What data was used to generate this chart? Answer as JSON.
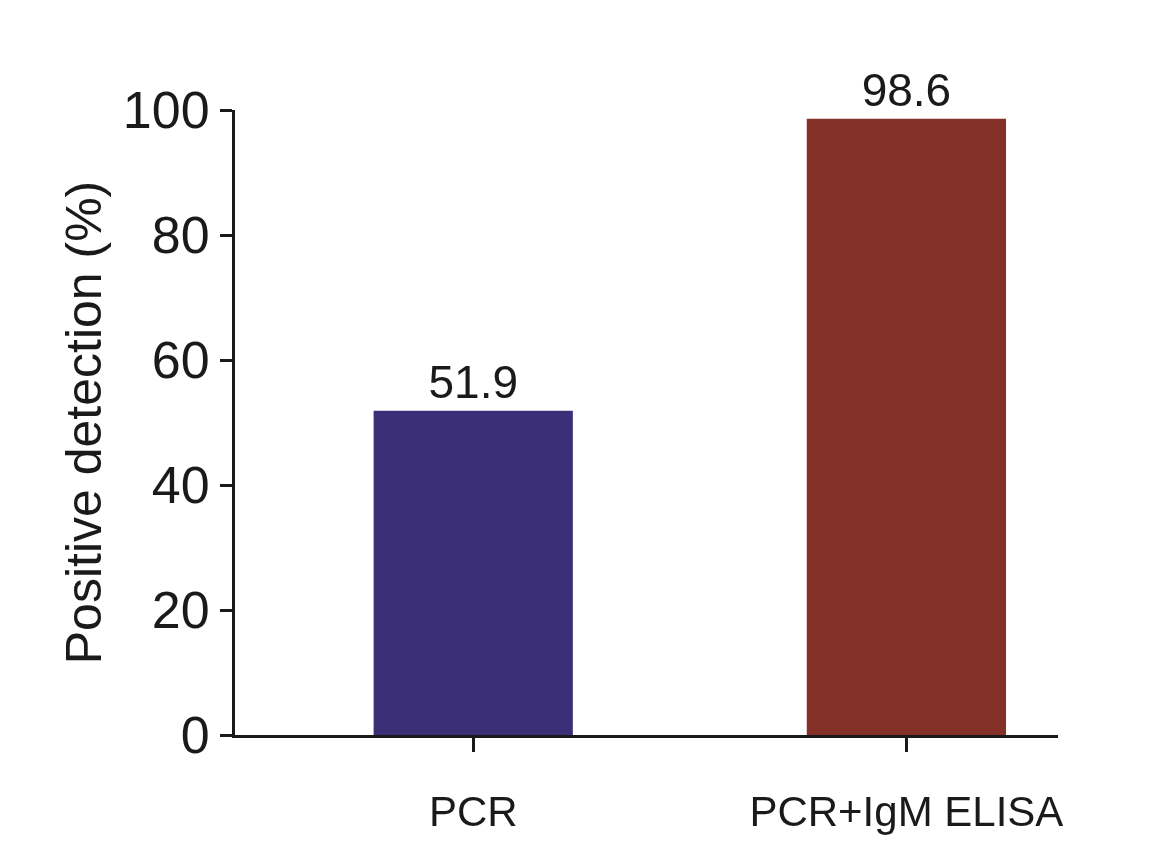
{
  "chart_data": {
    "type": "bar",
    "ylabel": "Positive detection (%)",
    "categories": [
      "PCR",
      "PCR+IgM ELISA"
    ],
    "values": [
      51.9,
      98.6
    ],
    "colors": [
      "#3b3077",
      "#86302a"
    ],
    "ylim": [
      0,
      100
    ],
    "yticks": [
      0,
      20,
      40,
      60,
      80,
      100
    ],
    "data_labels": true
  }
}
